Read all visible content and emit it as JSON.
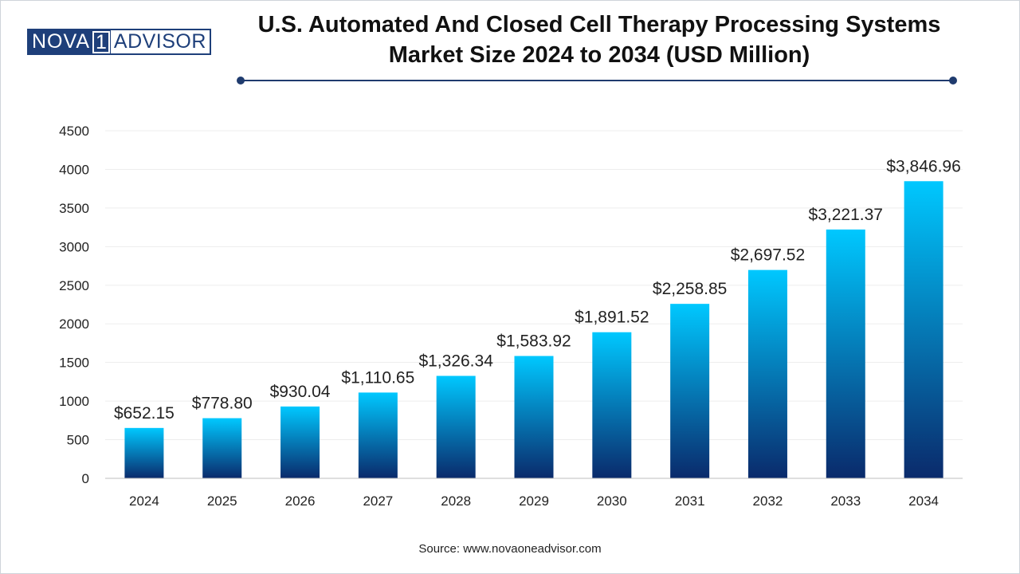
{
  "logo": {
    "left": "NOVA",
    "num": "1",
    "right": "ADVISOR"
  },
  "title_line1": "U.S. Automated And Closed Cell Therapy Processing Systems",
  "title_line2": "Market Size 2024 to 2034 (USD Million)",
  "source": "Source: www.novaoneadvisor.com",
  "colors": {
    "bar_top": "#00c8ff",
    "bar_bottom": "#0a2a6b",
    "title_rule": "#1f3b6e",
    "logo": "#1e3f7a"
  },
  "chart_data": {
    "type": "bar",
    "categories": [
      "2024",
      "2025",
      "2026",
      "2027",
      "2028",
      "2029",
      "2030",
      "2031",
      "2032",
      "2033",
      "2034"
    ],
    "values": [
      652.15,
      778.8,
      930.04,
      1110.65,
      1326.34,
      1583.92,
      1891.52,
      2258.85,
      2697.52,
      3221.37,
      3846.96
    ],
    "data_labels": [
      "$652.15",
      "$778.80",
      "$930.04",
      "$1,110.65",
      "$1,326.34",
      "$1,583.92",
      "$1,891.52",
      "$2,258.85",
      "$2,697.52",
      "$3,221.37",
      "$3,846.96"
    ],
    "yticks": [
      0,
      500,
      1000,
      1500,
      2000,
      2500,
      3000,
      3500,
      4000,
      4500
    ],
    "ylim": [
      0,
      4500
    ],
    "grid": true,
    "legend": "none"
  }
}
